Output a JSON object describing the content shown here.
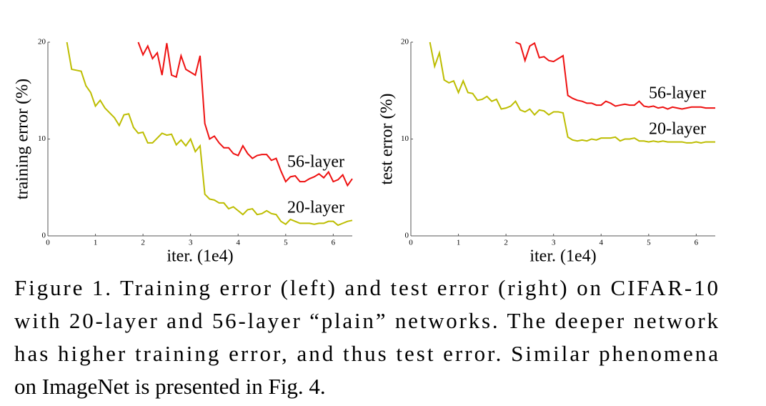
{
  "chart_data": [
    {
      "type": "line",
      "ylabel": "training error (%)",
      "xlabel": "iter. (1e4)",
      "xlim": [
        0,
        6.4
      ],
      "ylim": [
        0,
        20
      ],
      "xticks": [
        0,
        1,
        2,
        3,
        4,
        5,
        6
      ],
      "yticks": [
        0,
        10,
        20
      ],
      "x": [
        0.4,
        0.5,
        0.6,
        0.7,
        0.8,
        0.9,
        1.0,
        1.1,
        1.2,
        1.3,
        1.4,
        1.5,
        1.6,
        1.7,
        1.8,
        1.9,
        2.0,
        2.1,
        2.2,
        2.3,
        2.4,
        2.5,
        2.6,
        2.7,
        2.8,
        2.9,
        3.0,
        3.1,
        3.2,
        3.3,
        3.4,
        3.5,
        3.6,
        3.7,
        3.8,
        3.9,
        4.0,
        4.1,
        4.2,
        4.3,
        4.4,
        4.5,
        4.6,
        4.7,
        4.8,
        4.9,
        5.0,
        5.1,
        5.2,
        5.3,
        5.4,
        5.5,
        5.6,
        5.7,
        5.8,
        5.9,
        6.0,
        6.1,
        6.2,
        6.3,
        6.4
      ],
      "series": [
        {
          "name": "56-layer",
          "color": "#ee1111",
          "values": [
            null,
            null,
            null,
            null,
            null,
            null,
            null,
            null,
            null,
            null,
            null,
            null,
            null,
            null,
            null,
            20,
            18.7,
            19.6,
            18.3,
            18.9,
            16.6,
            19.9,
            16.6,
            16.4,
            18.6,
            17.2,
            16.9,
            16.6,
            18.6,
            11.6,
            10.0,
            10.3,
            9.6,
            9.1,
            9.1,
            8.5,
            8.3,
            9.3,
            8.5,
            8.0,
            8.3,
            8.4,
            8.4,
            7.8,
            8.0,
            6.7,
            5.6,
            6.1,
            6.2,
            5.6,
            5.6,
            5.9,
            6.1,
            6.4,
            6.0,
            6.6,
            5.6,
            5.8,
            6.3,
            5.2,
            5.9
          ]
        },
        {
          "name": "20-layer",
          "color": "#bdbd00",
          "values": [
            20,
            17.2,
            17.1,
            17.0,
            15.5,
            14.8,
            13.4,
            14.0,
            13.2,
            12.7,
            12.2,
            11.4,
            12.5,
            12.6,
            11.2,
            10.6,
            10.7,
            9.6,
            9.6,
            10.1,
            10.6,
            10.4,
            10.5,
            9.4,
            9.9,
            9.3,
            10.0,
            8.7,
            9.3,
            4.3,
            3.8,
            3.7,
            3.4,
            3.4,
            2.8,
            3.0,
            2.6,
            2.2,
            2.7,
            2.8,
            2.2,
            2.3,
            2.6,
            2.3,
            2.2,
            1.5,
            1.2,
            1.7,
            1.5,
            1.3,
            1.3,
            1.3,
            1.2,
            1.3,
            1.3,
            1.5,
            1.5,
            1.1,
            1.3,
            1.5,
            1.6
          ]
        }
      ]
    },
    {
      "type": "line",
      "ylabel": "test error (%)",
      "xlabel": "iter. (1e4)",
      "xlim": [
        0,
        6.4
      ],
      "ylim": [
        0,
        20
      ],
      "xticks": [
        0,
        1,
        2,
        3,
        4,
        5,
        6
      ],
      "yticks": [
        0,
        10,
        20
      ],
      "x": [
        0.4,
        0.5,
        0.6,
        0.7,
        0.8,
        0.9,
        1.0,
        1.1,
        1.2,
        1.3,
        1.4,
        1.5,
        1.6,
        1.7,
        1.8,
        1.9,
        2.0,
        2.1,
        2.2,
        2.3,
        2.4,
        2.5,
        2.6,
        2.7,
        2.8,
        2.9,
        3.0,
        3.1,
        3.2,
        3.3,
        3.4,
        3.5,
        3.6,
        3.7,
        3.8,
        3.9,
        4.0,
        4.1,
        4.2,
        4.3,
        4.4,
        4.5,
        4.6,
        4.7,
        4.8,
        4.9,
        5.0,
        5.1,
        5.2,
        5.3,
        5.4,
        5.5,
        5.6,
        5.7,
        5.8,
        5.9,
        6.0,
        6.1,
        6.2,
        6.3,
        6.4
      ],
      "series": [
        {
          "name": "56-layer",
          "color": "#ee1111",
          "values": [
            null,
            null,
            null,
            null,
            null,
            null,
            null,
            null,
            null,
            null,
            null,
            null,
            null,
            null,
            null,
            null,
            null,
            null,
            20,
            19.8,
            18.1,
            19.6,
            19.9,
            18.4,
            18.5,
            18.1,
            18.0,
            18.3,
            18.6,
            14.5,
            14.2,
            14.0,
            13.9,
            13.7,
            13.7,
            13.5,
            13.5,
            13.9,
            13.7,
            13.4,
            13.5,
            13.6,
            13.5,
            13.5,
            13.9,
            13.4,
            13.3,
            13.4,
            13.2,
            13.3,
            13.1,
            13.3,
            13.2,
            13.1,
            13.2,
            13.3,
            13.3,
            13.3,
            13.2,
            13.2,
            13.2
          ]
        },
        {
          "name": "20-layer",
          "color": "#bdbd00",
          "values": [
            20,
            17.5,
            18.9,
            16.1,
            15.8,
            16.0,
            14.8,
            16.0,
            14.8,
            14.7,
            14.0,
            14.1,
            14.4,
            13.9,
            14.1,
            13.1,
            13.2,
            13.4,
            13.9,
            13.0,
            12.8,
            13.1,
            12.5,
            13.0,
            12.9,
            12.5,
            12.8,
            12.8,
            12.7,
            10.2,
            9.9,
            9.8,
            9.9,
            9.8,
            10.0,
            9.9,
            10.1,
            10.1,
            10.1,
            10.2,
            9.8,
            10.0,
            10.0,
            10.1,
            9.8,
            9.8,
            9.7,
            9.8,
            9.7,
            9.8,
            9.7,
            9.7,
            9.7,
            9.7,
            9.6,
            9.6,
            9.7,
            9.6,
            9.7,
            9.7,
            9.7
          ]
        }
      ]
    }
  ],
  "caption": [
    "Figure 1. Training error (left) and test error (right) on CIFAR-10",
    "with 20-layer and 56-layer “plain” networks. The deeper network",
    "has higher training error, and thus test error.  Similar phenomena",
    "on ImageNet is presented in Fig. 4."
  ]
}
